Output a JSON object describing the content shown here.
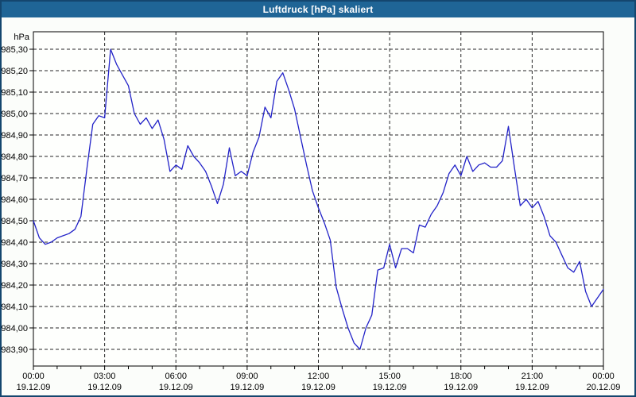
{
  "window": {
    "title": "Luftdruck [hPa] skaliert",
    "title_bar_color": "#1f6596",
    "border_color": "#14466e",
    "background_color": "#fbfdfa"
  },
  "chart_data": {
    "type": "line",
    "title": "Luftdruck [hPa] skaliert",
    "ylabel": "hPa",
    "y_unit_label": "hPa",
    "line_color": "#2323c8",
    "grid": "dashed-black",
    "legend": "none",
    "ylim": [
      983.83,
      985.38
    ],
    "xlim_hours": [
      0,
      24
    ],
    "x_minor_tick_interval_hours": 1,
    "x_major_tick_interval_hours": 3,
    "y_tick_values": [
      985.3,
      985.2,
      985.1,
      985.0,
      984.9,
      984.8,
      984.7,
      984.6,
      984.5,
      984.4,
      984.3,
      984.2,
      984.1,
      984.0,
      983.9
    ],
    "y_tick_labels": [
      "985,30",
      "985,20",
      "985,10",
      "985,00",
      "984,90",
      "984,80",
      "984,70",
      "984,60",
      "984,50",
      "984,40",
      "984,30",
      "984,20",
      "984,10",
      "984,00",
      "983,90"
    ],
    "x_ticks": [
      {
        "hour": 0,
        "time": "00:00",
        "date": "19.12.09"
      },
      {
        "hour": 3,
        "time": "03:00",
        "date": "19.12.09"
      },
      {
        "hour": 6,
        "time": "06:00",
        "date": "19.12.09"
      },
      {
        "hour": 9,
        "time": "09:00",
        "date": "19.12.09"
      },
      {
        "hour": 12,
        "time": "12:00",
        "date": "19.12.09"
      },
      {
        "hour": 15,
        "time": "15:00",
        "date": "19.12.09"
      },
      {
        "hour": 18,
        "time": "18:00",
        "date": "19.12.09"
      },
      {
        "hour": 21,
        "time": "21:00",
        "date": "19.12.09"
      },
      {
        "hour": 24,
        "time": "00:00",
        "date": "20.12.09"
      }
    ],
    "sampling_interval_minutes": 15,
    "series": [
      {
        "name": "Luftdruck [hPa]",
        "start_hour": 0,
        "values": [
          984.5,
          984.42,
          984.39,
          984.4,
          984.42,
          984.43,
          984.44,
          984.46,
          984.52,
          984.74,
          984.95,
          984.99,
          984.98,
          985.3,
          985.23,
          985.18,
          985.13,
          985.0,
          984.95,
          984.98,
          984.93,
          984.97,
          984.88,
          984.73,
          984.76,
          984.74,
          984.85,
          984.8,
          984.77,
          984.73,
          984.66,
          984.58,
          984.67,
          984.84,
          984.71,
          984.73,
          984.71,
          984.82,
          984.89,
          985.03,
          984.98,
          985.15,
          985.19,
          985.11,
          985.02,
          984.89,
          984.76,
          984.64,
          984.56,
          984.49,
          984.41,
          984.19,
          984.09,
          984.0,
          983.93,
          983.9,
          984.0,
          984.06,
          984.27,
          984.28,
          984.39,
          984.28,
          984.37,
          984.37,
          984.35,
          984.48,
          984.47,
          984.53,
          984.57,
          984.63,
          984.72,
          984.76,
          984.71,
          984.8,
          984.73,
          984.76,
          984.77,
          984.75,
          984.75,
          984.78,
          984.94,
          984.75,
          984.57,
          984.6,
          984.56,
          984.59,
          984.52,
          984.43,
          984.4,
          984.34,
          984.28,
          984.26,
          984.31,
          984.17,
          984.1,
          984.14,
          984.18
        ]
      }
    ]
  }
}
